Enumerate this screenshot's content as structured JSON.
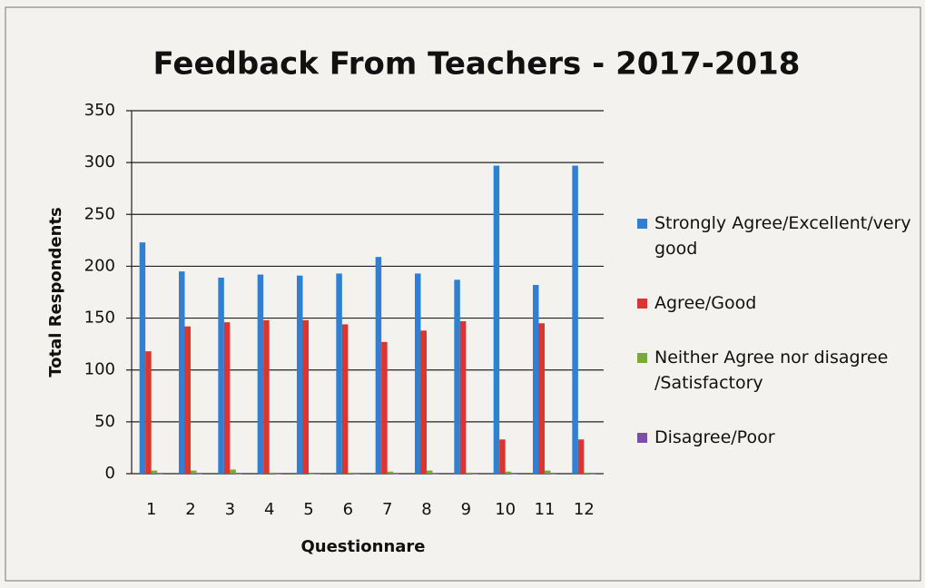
{
  "chart_data": {
    "type": "bar",
    "title": "Feedback From Teachers - 2017-2018",
    "x_label": "Questionnare",
    "y_label": "Total Respondents",
    "categories": [
      "1",
      "2",
      "3",
      "4",
      "5",
      "6",
      "7",
      "8",
      "9",
      "10",
      "11",
      "12"
    ],
    "series": [
      {
        "name": "Strongly Agree/Excellent/very good",
        "color": "#2f7fd4",
        "values": [
          223,
          195,
          189,
          192,
          191,
          193,
          209,
          193,
          187,
          297,
          182,
          297
        ]
      },
      {
        "name": "Agree/Good",
        "color": "#d8362f",
        "values": [
          118,
          142,
          146,
          148,
          148,
          144,
          127,
          138,
          147,
          33,
          145,
          33
        ]
      },
      {
        "name": "Neither Agree nor disagree /Satisfactory",
        "color": "#7aa83a",
        "values": [
          3,
          3,
          4,
          1,
          0,
          1,
          2,
          3,
          1,
          2,
          3,
          1
        ]
      },
      {
        "name": "Disagree/Poor",
        "color": "#7b4fa8",
        "values": [
          0,
          0,
          0,
          0,
          0,
          0,
          0,
          0,
          0,
          0,
          0,
          0
        ]
      }
    ],
    "ylim": [
      0,
      350
    ],
    "yticks": [
      0,
      50,
      100,
      150,
      200,
      250,
      300,
      350
    ],
    "grid": true
  }
}
